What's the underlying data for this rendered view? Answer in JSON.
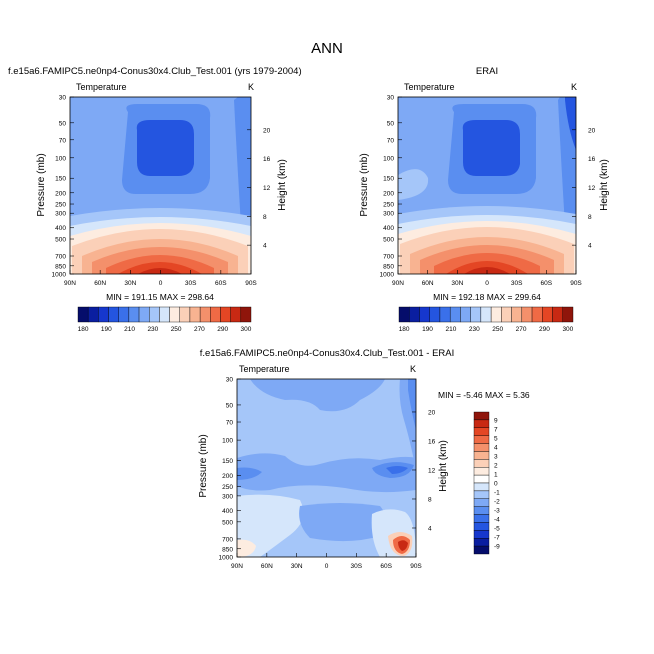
{
  "page_title": "ANN",
  "chart_data": [
    {
      "type": "heatmap",
      "title": "f.e15a6.FAMIPC5.ne0np4-Conus30x4.Club_Test.001 (yrs 1979-2004)",
      "variable": "Temperature",
      "units": "K",
      "ylabel": "Pressure (mb)",
      "right_label": "Height (km)",
      "x_ticks": [
        "90N",
        "60N",
        "30N",
        "0",
        "30S",
        "60S",
        "90S"
      ],
      "y_ticks": [
        30,
        50,
        70,
        100,
        150,
        200,
        250,
        300,
        400,
        500,
        700,
        850,
        1000
      ],
      "y_scale": "log",
      "ylim": [
        30,
        1000
      ],
      "height_ticks": [
        4,
        8,
        12,
        16,
        20
      ],
      "stats_text": "MIN = 191.15   MAX = 298.64",
      "min": 191.15,
      "max": 298.64,
      "contour_levels": [
        180,
        185,
        190,
        200,
        210,
        220,
        230,
        240,
        250,
        260,
        270,
        280,
        290,
        300
      ],
      "colorbar_labels": [
        "180",
        "190",
        "210",
        "230",
        "250",
        "270",
        "290",
        "300"
      ]
    },
    {
      "type": "heatmap",
      "title": "ERAI",
      "variable": "Temperature",
      "units": "K",
      "ylabel": "Pressure (mb)",
      "right_label": "Height (km)",
      "x_ticks": [
        "90N",
        "60N",
        "30N",
        "0",
        "30S",
        "60S",
        "90S"
      ],
      "y_ticks": [
        30,
        50,
        70,
        100,
        150,
        200,
        250,
        300,
        400,
        500,
        700,
        850,
        1000
      ],
      "y_scale": "log",
      "ylim": [
        30,
        1000
      ],
      "height_ticks": [
        4,
        8,
        12,
        16,
        20
      ],
      "stats_text": "MIN = 192.18   MAX = 299.64",
      "min": 192.18,
      "max": 299.64,
      "contour_levels": [
        180,
        185,
        190,
        200,
        210,
        220,
        230,
        240,
        250,
        260,
        270,
        280,
        290,
        300
      ],
      "colorbar_labels": [
        "180",
        "190",
        "210",
        "230",
        "250",
        "270",
        "290",
        "300"
      ]
    },
    {
      "type": "heatmap",
      "title": "f.e15a6.FAMIPC5.ne0np4-Conus30x4.Club_Test.001 - ERAI",
      "variable": "Temperature",
      "units": "K",
      "ylabel": "Pressure (mb)",
      "right_label": "Height (km)",
      "x_ticks": [
        "90N",
        "60N",
        "30N",
        "0",
        "30S",
        "60S",
        "90S"
      ],
      "y_ticks": [
        30,
        50,
        70,
        100,
        150,
        200,
        250,
        300,
        400,
        500,
        700,
        850,
        1000
      ],
      "y_scale": "log",
      "ylim": [
        30,
        1000
      ],
      "height_ticks": [
        4,
        8,
        12,
        16,
        20
      ],
      "stats_text": "MIN = -5.46  MAX =  5.36",
      "min": -5.46,
      "max": 5.36,
      "colorbar_labels": [
        "9",
        "7",
        "5",
        "4",
        "3",
        "2",
        "1",
        "0",
        "-1",
        "-2",
        "-3",
        "-4",
        "-5",
        "-7",
        "-9"
      ]
    }
  ],
  "colors": {
    "temp_scale": [
      "#050d6b",
      "#0a1ea0",
      "#1637cd",
      "#2455e0",
      "#3a70ea",
      "#5a8ef0",
      "#7ea9f5",
      "#a5c6f9",
      "#d5e6fb",
      "#fdece0",
      "#fbd0b8",
      "#f8b391",
      "#f4906b",
      "#ef6a45",
      "#e44624",
      "#c82913",
      "#8f150b"
    ],
    "diff_scale": [
      "#050d6b",
      "#0a1ea0",
      "#1637cd",
      "#2455e0",
      "#3a70ea",
      "#5a8ef0",
      "#7ea9f5",
      "#a5c6f9",
      "#d5e6fb",
      "#ffffff",
      "#fdece0",
      "#fbd0b8",
      "#f8b391",
      "#f4906b",
      "#ef6a45",
      "#e44624",
      "#c82913",
      "#8f150b"
    ]
  }
}
